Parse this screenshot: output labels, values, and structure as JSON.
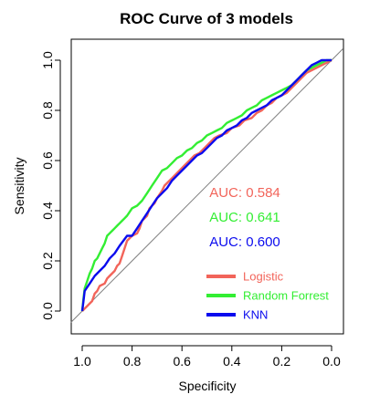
{
  "chart_data": {
    "type": "line",
    "title": "ROC Curve of 3 models",
    "xlabel": "Specificity",
    "ylabel": "Sensitivity",
    "xlim": [
      1.0,
      0.0
    ],
    "ylim": [
      0.0,
      1.0
    ],
    "x_reversed": true,
    "grid": false,
    "legend_position": "bottom-right",
    "xticks": [
      "1.0",
      "0.8",
      "0.6",
      "0.4",
      "0.2",
      "0.0"
    ],
    "yticks": [
      "0.0",
      "0.2",
      "0.4",
      "0.6",
      "0.8",
      "1.0"
    ],
    "reference_line": {
      "from": [
        1.0,
        0.0
      ],
      "to": [
        0.0,
        1.0
      ],
      "color": "#7f7f7f"
    },
    "series": [
      {
        "name": "Logistic",
        "color": "#f2645a",
        "auc_label": "AUC: 0.584",
        "specificity": [
          1.0,
          0.99,
          0.98,
          0.96,
          0.95,
          0.94,
          0.93,
          0.91,
          0.9,
          0.89,
          0.87,
          0.86,
          0.85,
          0.84,
          0.83,
          0.82,
          0.8,
          0.78,
          0.77,
          0.76,
          0.74,
          0.73,
          0.71,
          0.7,
          0.68,
          0.67,
          0.65,
          0.64,
          0.62,
          0.61,
          0.59,
          0.57,
          0.55,
          0.53,
          0.51,
          0.49,
          0.47,
          0.45,
          0.42,
          0.4,
          0.37,
          0.35,
          0.32,
          0.3,
          0.28,
          0.26,
          0.24,
          0.22,
          0.2,
          0.18,
          0.16,
          0.14,
          0.12,
          0.1,
          0.08,
          0.06,
          0.04,
          0.02,
          0.0
        ],
        "sensitivity": [
          0.0,
          0.01,
          0.02,
          0.04,
          0.07,
          0.08,
          0.1,
          0.11,
          0.13,
          0.14,
          0.16,
          0.18,
          0.19,
          0.22,
          0.25,
          0.28,
          0.3,
          0.31,
          0.33,
          0.36,
          0.38,
          0.41,
          0.43,
          0.45,
          0.48,
          0.5,
          0.52,
          0.53,
          0.55,
          0.56,
          0.58,
          0.6,
          0.62,
          0.63,
          0.65,
          0.67,
          0.69,
          0.7,
          0.71,
          0.73,
          0.74,
          0.76,
          0.77,
          0.79,
          0.8,
          0.82,
          0.83,
          0.85,
          0.86,
          0.87,
          0.89,
          0.91,
          0.93,
          0.95,
          0.96,
          0.97,
          0.98,
          0.99,
          1.0
        ]
      },
      {
        "name": "Random Forrest",
        "color": "#33ee33",
        "auc_label": "AUC: 0.641",
        "specificity": [
          1.0,
          0.995,
          0.99,
          0.98,
          0.97,
          0.96,
          0.95,
          0.94,
          0.93,
          0.92,
          0.91,
          0.9,
          0.89,
          0.88,
          0.87,
          0.86,
          0.85,
          0.84,
          0.83,
          0.82,
          0.8,
          0.78,
          0.76,
          0.74,
          0.72,
          0.7,
          0.68,
          0.66,
          0.64,
          0.62,
          0.6,
          0.58,
          0.56,
          0.54,
          0.52,
          0.5,
          0.48,
          0.46,
          0.44,
          0.42,
          0.4,
          0.38,
          0.36,
          0.34,
          0.32,
          0.3,
          0.28,
          0.26,
          0.24,
          0.22,
          0.2,
          0.18,
          0.16,
          0.14,
          0.12,
          0.1,
          0.08,
          0.06,
          0.04,
          0.02,
          0.0
        ],
        "sensitivity": [
          0.0,
          0.05,
          0.09,
          0.12,
          0.15,
          0.17,
          0.2,
          0.21,
          0.23,
          0.25,
          0.27,
          0.3,
          0.31,
          0.32,
          0.33,
          0.34,
          0.35,
          0.36,
          0.37,
          0.38,
          0.41,
          0.42,
          0.44,
          0.47,
          0.5,
          0.53,
          0.56,
          0.57,
          0.59,
          0.61,
          0.62,
          0.64,
          0.65,
          0.67,
          0.68,
          0.7,
          0.71,
          0.72,
          0.73,
          0.75,
          0.76,
          0.77,
          0.78,
          0.8,
          0.81,
          0.82,
          0.84,
          0.85,
          0.86,
          0.87,
          0.88,
          0.89,
          0.9,
          0.92,
          0.94,
          0.96,
          0.97,
          0.98,
          0.99,
          1.0,
          1.0
        ]
      },
      {
        "name": "KNN",
        "color": "#0b0bee",
        "auc_label": "AUC: 0.600",
        "specificity": [
          1.0,
          0.995,
          0.99,
          0.97,
          0.95,
          0.93,
          0.91,
          0.89,
          0.87,
          0.85,
          0.82,
          0.8,
          0.78,
          0.76,
          0.74,
          0.72,
          0.7,
          0.68,
          0.66,
          0.64,
          0.62,
          0.6,
          0.58,
          0.56,
          0.54,
          0.52,
          0.5,
          0.48,
          0.46,
          0.44,
          0.42,
          0.4,
          0.38,
          0.36,
          0.34,
          0.32,
          0.3,
          0.28,
          0.26,
          0.24,
          0.22,
          0.2,
          0.18,
          0.16,
          0.14,
          0.12,
          0.1,
          0.08,
          0.06,
          0.04,
          0.02,
          0.0
        ],
        "sensitivity": [
          0.0,
          0.04,
          0.08,
          0.11,
          0.14,
          0.16,
          0.18,
          0.21,
          0.23,
          0.26,
          0.3,
          0.3,
          0.33,
          0.36,
          0.39,
          0.42,
          0.45,
          0.47,
          0.49,
          0.52,
          0.54,
          0.56,
          0.58,
          0.6,
          0.62,
          0.63,
          0.65,
          0.67,
          0.69,
          0.7,
          0.72,
          0.73,
          0.74,
          0.76,
          0.77,
          0.79,
          0.8,
          0.81,
          0.82,
          0.84,
          0.85,
          0.86,
          0.88,
          0.9,
          0.92,
          0.94,
          0.96,
          0.98,
          0.99,
          1.0,
          1.0,
          1.0
        ]
      }
    ]
  }
}
